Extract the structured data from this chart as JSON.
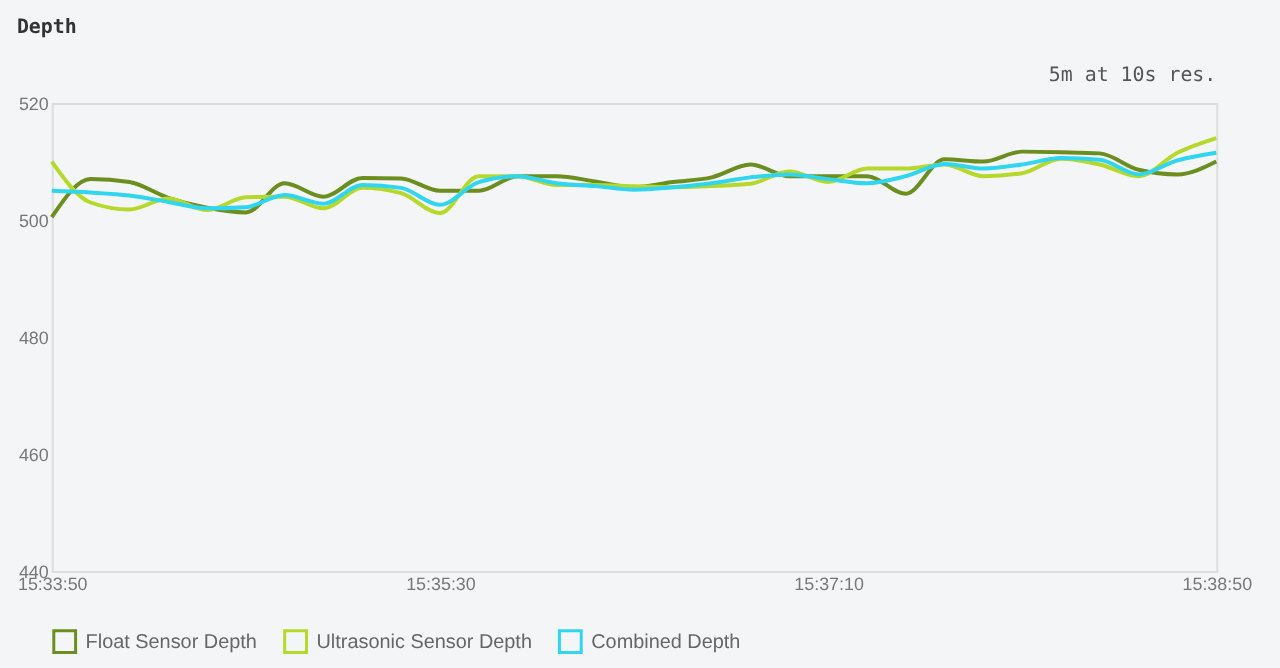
{
  "chart_data": {
    "type": "line",
    "title": "Depth",
    "annotations": [
      "5m at 10s res."
    ],
    "x": [
      15.563889,
      15.566667,
      15.569444,
      15.572222,
      15.575,
      15.577778,
      15.580556,
      15.583333,
      15.586111,
      15.588889,
      15.591667,
      15.594444,
      15.597222,
      15.6,
      15.602778,
      15.605556,
      15.608333,
      15.611111,
      15.613889,
      15.616667,
      15.619444,
      15.622222,
      15.625,
      15.627778,
      15.630556,
      15.633333,
      15.636111,
      15.638889,
      15.641667,
      15.644444,
      15.647222
    ],
    "series": [
      {
        "name": "Float Sensor Depth",
        "color": "#6b8e1e",
        "values": [
          500.5,
          507,
          506.5,
          503.8,
          502.1,
          501.3,
          506.3,
          504,
          507.2,
          507.1,
          505,
          505,
          507.5,
          507.5,
          506.6,
          505.6,
          506.5,
          507.3,
          509.5,
          507.5,
          507.5,
          507.5,
          504.5,
          510.4,
          510,
          511.7,
          511.6,
          511.4,
          508.6,
          507.8,
          510
        ]
      },
      {
        "name": "Ultrasonic Sensor Depth",
        "color": "#b5d82a",
        "values": [
          510,
          503,
          501.8,
          503.7,
          501.7,
          503.9,
          504,
          502,
          505.5,
          504.6,
          501.2,
          507.5,
          507.5,
          506,
          506,
          505.8,
          505.6,
          505.8,
          506.2,
          508.3,
          506.5,
          508.8,
          508.8,
          509.5,
          507.5,
          508,
          510.5,
          509.5,
          507.5,
          511.5,
          514
        ]
      },
      {
        "name": "Combined Depth",
        "color": "#30d5f0",
        "values": [
          505,
          504.7,
          504.2,
          503.1,
          502,
          502.2,
          504.3,
          502.8,
          506,
          505.5,
          502.6,
          506.5,
          507.5,
          506.3,
          505.8,
          505.2,
          505.6,
          506.3,
          507.3,
          507.8,
          507,
          506.3,
          507.5,
          509.6,
          508.8,
          509.5,
          510.6,
          510.3,
          507.8,
          510.2,
          511.5
        ]
      }
    ],
    "xlim": [
      15.563889,
      15.647222
    ],
    "xticks": [
      {
        "value": 15.563889,
        "label": "15:33:50"
      },
      {
        "value": 15.591667,
        "label": "15:35:30"
      },
      {
        "value": 15.619444,
        "label": "15:37:10"
      },
      {
        "value": 15.647222,
        "label": "15:38:50"
      }
    ],
    "ylim": [
      440,
      520
    ],
    "yticks": [
      440,
      460,
      480,
      500,
      520
    ],
    "grid": false,
    "legend": "bottom",
    "marker": "none",
    "line_style": "solid"
  }
}
